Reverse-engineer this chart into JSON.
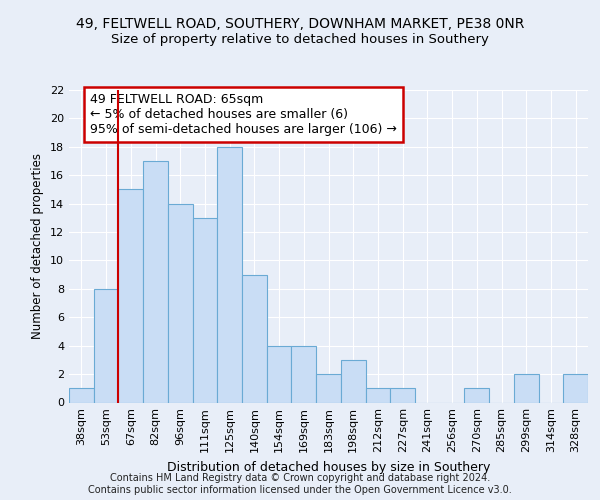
{
  "title_line1": "49, FELTWELL ROAD, SOUTHERY, DOWNHAM MARKET, PE38 0NR",
  "title_line2": "Size of property relative to detached houses in Southery",
  "xlabel": "Distribution of detached houses by size in Southery",
  "ylabel": "Number of detached properties",
  "categories": [
    "38sqm",
    "53sqm",
    "67sqm",
    "82sqm",
    "96sqm",
    "111sqm",
    "125sqm",
    "140sqm",
    "154sqm",
    "169sqm",
    "183sqm",
    "198sqm",
    "212sqm",
    "227sqm",
    "241sqm",
    "256sqm",
    "270sqm",
    "285sqm",
    "299sqm",
    "314sqm",
    "328sqm"
  ],
  "values": [
    1,
    8,
    15,
    17,
    14,
    13,
    18,
    9,
    4,
    4,
    2,
    3,
    1,
    1,
    0,
    0,
    1,
    0,
    2,
    0,
    2
  ],
  "bar_color": "#c9ddf5",
  "bar_edge_color": "#6aaad4",
  "vline_x": 1.5,
  "vline_color": "#cc0000",
  "annotation_text": "49 FELTWELL ROAD: 65sqm\n← 5% of detached houses are smaller (6)\n95% of semi-detached houses are larger (106) →",
  "annotation_box_color": "white",
  "annotation_box_edge_color": "#cc0000",
  "ylim": [
    0,
    22
  ],
  "yticks": [
    0,
    2,
    4,
    6,
    8,
    10,
    12,
    14,
    16,
    18,
    20,
    22
  ],
  "footer_text": "Contains HM Land Registry data © Crown copyright and database right 2024.\nContains public sector information licensed under the Open Government Licence v3.0.",
  "bg_color": "#e8eef8",
  "plot_bg_color": "#e8eef8",
  "grid_color": "#ffffff",
  "title1_fontsize": 10,
  "title2_fontsize": 9.5,
  "xlabel_fontsize": 9,
  "ylabel_fontsize": 8.5,
  "tick_fontsize": 8,
  "annotation_fontsize": 9,
  "footer_fontsize": 7
}
